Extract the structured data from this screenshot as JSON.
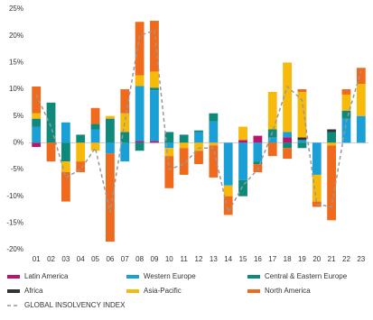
{
  "chart_data": {
    "type": "bar",
    "stacked": true,
    "categories": [
      "01",
      "02",
      "03",
      "04",
      "05",
      "06",
      "07",
      "08",
      "09",
      "10",
      "11",
      "12",
      "13",
      "14",
      "15",
      "16",
      "17",
      "18",
      "19",
      "20",
      "21",
      "22",
      "23"
    ],
    "series": [
      {
        "name": "Latin America",
        "color": "#b5176e",
        "values": [
          -0.8,
          0,
          0,
          0,
          0,
          0,
          0,
          0.3,
          0.3,
          0,
          0,
          0,
          0,
          0,
          0.5,
          1.3,
          0,
          1,
          0,
          0,
          0,
          0,
          0
        ]
      },
      {
        "name": "Western Europe",
        "color": "#1aa0d6",
        "values": [
          3,
          0,
          3.8,
          0,
          2.5,
          -2,
          -3.5,
          10.3,
          9.5,
          -1,
          0,
          2,
          4,
          -8,
          -7,
          -3.5,
          1,
          1,
          0.5,
          -6,
          0,
          4.5,
          5
        ]
      },
      {
        "name": "Central & Eastern Europe",
        "color": "#0f8a7a",
        "values": [
          1.5,
          7.5,
          -3.5,
          1.5,
          1,
          4.5,
          2,
          -1.5,
          0.5,
          2,
          1.5,
          0.3,
          1.5,
          0,
          -3,
          -0.5,
          1.5,
          -1,
          -1,
          0,
          2,
          1.5,
          0
        ]
      },
      {
        "name": "Africa",
        "color": "#333333",
        "values": [
          0,
          0,
          0,
          0,
          0,
          0,
          0,
          0,
          0,
          0,
          0,
          0,
          0,
          0,
          0,
          0,
          0,
          0,
          0.5,
          0,
          0.5,
          0,
          0
        ]
      },
      {
        "name": "Asia-Pacific",
        "color": "#f7b90a",
        "values": [
          1,
          0,
          -2,
          -3.5,
          -1.5,
          0.5,
          3.5,
          2,
          3,
          -1.5,
          -1,
          -1.5,
          -0.5,
          -2,
          2.5,
          0,
          7,
          13,
          8.5,
          -5,
          -0.5,
          3,
          6
        ]
      },
      {
        "name": "North America",
        "color": "#f06a1d",
        "values": [
          5,
          -3.5,
          -5.5,
          -2,
          3,
          -16.5,
          4.5,
          10,
          9.5,
          -6,
          -5,
          -2.5,
          -6,
          -3.5,
          0,
          -1.5,
          -2.5,
          -2,
          0.5,
          -1,
          -14,
          1,
          3
        ]
      }
    ],
    "line": {
      "name": "GLOBAL INSOLVENCY INDEX",
      "color": "#999999",
      "values": [
        9,
        3,
        -6.5,
        -5,
        -1,
        -13,
        4,
        20,
        21,
        -5,
        -4,
        -1,
        -1,
        -13,
        -8,
        -5,
        2,
        10.5,
        8,
        -11.5,
        -12,
        4,
        13.5
      ]
    },
    "ylim": [
      -20,
      25
    ],
    "yticks": [
      {
        "value": -20,
        "label": "-20%"
      },
      {
        "value": -15,
        "label": "-15%"
      },
      {
        "value": -10,
        "label": "-10%"
      },
      {
        "value": -5,
        "label": "-5%"
      },
      {
        "value": 0,
        "label": "0%"
      },
      {
        "value": 5,
        "label": "5%"
      },
      {
        "value": 10,
        "label": "10%"
      },
      {
        "value": 15,
        "label": "15%"
      },
      {
        "value": 20,
        "label": "20%"
      },
      {
        "value": 25,
        "label": "25%"
      }
    ]
  }
}
